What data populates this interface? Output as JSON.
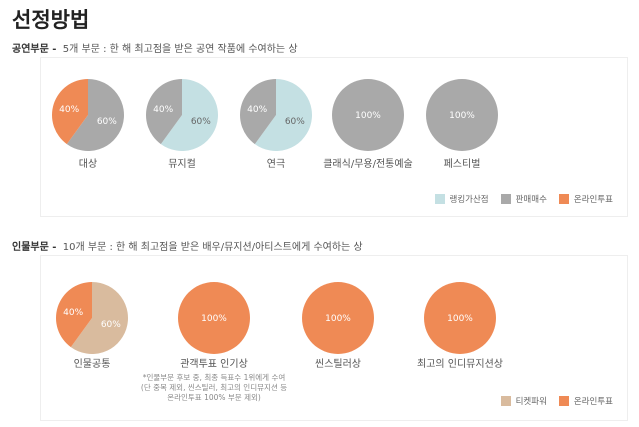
{
  "title": "선정방법",
  "colors": {
    "ranking": "#c4e0e3",
    "sales": "#a9a9a9",
    "online": "#ef8a55",
    "ticket": "#d9bb9e"
  },
  "performance": {
    "heading": "공연부문 -",
    "desc": "5개 부문 : 한 해 최고점을 받은 공연 작품에 수여하는 상",
    "pies": [
      {
        "label": "대상",
        "slices": [
          {
            "key": "sales",
            "value": 60
          },
          {
            "key": "online",
            "value": 40
          }
        ]
      },
      {
        "label": "뮤지컬",
        "slices": [
          {
            "key": "ranking",
            "value": 60
          },
          {
            "key": "sales",
            "value": 40
          }
        ]
      },
      {
        "label": "연극",
        "slices": [
          {
            "key": "ranking",
            "value": 60
          },
          {
            "key": "sales",
            "value": 40
          }
        ]
      },
      {
        "label": "클래식/무용/전통예술",
        "slices": [
          {
            "key": "sales",
            "value": 100
          }
        ]
      },
      {
        "label": "페스티벌",
        "slices": [
          {
            "key": "sales",
            "value": 100
          }
        ]
      }
    ],
    "legend": [
      {
        "key": "ranking",
        "label": "랭킹가산점"
      },
      {
        "key": "sales",
        "label": "판매매수"
      },
      {
        "key": "online",
        "label": "온라인투표"
      }
    ]
  },
  "person": {
    "heading": "인물부문 -",
    "desc": "10개 부문 : 한 해 최고점을 받은 배우/뮤지션/아티스트에게 수여하는 상",
    "pies": [
      {
        "label": "인물공통",
        "slices": [
          {
            "key": "ticket",
            "value": 60
          },
          {
            "key": "online",
            "value": 40
          }
        ]
      },
      {
        "label": "관객투표 인기상",
        "slices": [
          {
            "key": "online",
            "value": 100
          }
        ]
      },
      {
        "label": "씬스틸러상",
        "slices": [
          {
            "key": "online",
            "value": 100
          }
        ]
      },
      {
        "label": "최고의 인디뮤지션상",
        "slices": [
          {
            "key": "online",
            "value": 100
          }
        ]
      }
    ],
    "note": [
      "*인물부문 후보 중, 최종 득표수 1위에게 수여",
      "(단 중복 제외, 씬스틸러, 최고의 인디뮤지션 등",
      "온라인투표 100% 부문 제외)"
    ],
    "legend": [
      {
        "key": "ticket",
        "label": "티켓파워"
      },
      {
        "key": "online",
        "label": "온라인투표"
      }
    ]
  }
}
